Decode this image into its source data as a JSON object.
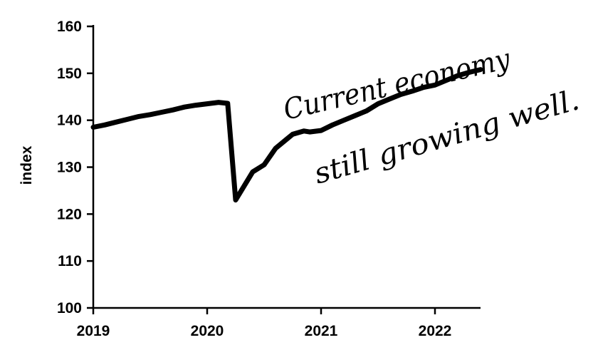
{
  "chart_data": {
    "type": "line",
    "ylabel": "index",
    "xlabel": "",
    "xlim": [
      2019,
      2022.4
    ],
    "ylim": [
      100,
      160
    ],
    "x_ticks": [
      {
        "value": 2019,
        "label": "2019"
      },
      {
        "value": 2020,
        "label": "2020"
      },
      {
        "value": 2021,
        "label": "2021"
      },
      {
        "value": 2022,
        "label": "2022"
      }
    ],
    "y_ticks": [
      {
        "value": 100,
        "label": "100"
      },
      {
        "value": 110,
        "label": "110"
      },
      {
        "value": 120,
        "label": "120"
      },
      {
        "value": 130,
        "label": "130"
      },
      {
        "value": 140,
        "label": "140"
      },
      {
        "value": 150,
        "label": "150"
      },
      {
        "value": 160,
        "label": "160"
      }
    ],
    "grid": false,
    "series": [
      {
        "color": "#000000",
        "x": [
          2019.0,
          2019.1,
          2019.2,
          2019.3,
          2019.4,
          2019.5,
          2019.6,
          2019.7,
          2019.8,
          2019.9,
          2020.0,
          2020.1,
          2020.18,
          2020.25,
          2020.3,
          2020.4,
          2020.5,
          2020.6,
          2020.7,
          2020.75,
          2020.85,
          2020.9,
          2021.0,
          2021.1,
          2021.2,
          2021.3,
          2021.4,
          2021.5,
          2021.6,
          2021.7,
          2021.8,
          2021.9,
          2022.0,
          2022.1,
          2022.2,
          2022.3,
          2022.4
        ],
        "y": [
          138.5,
          139.0,
          139.6,
          140.2,
          140.8,
          141.2,
          141.7,
          142.2,
          142.8,
          143.2,
          143.5,
          143.8,
          143.6,
          123.0,
          125.0,
          129.0,
          130.5,
          134.0,
          136.0,
          137.0,
          137.7,
          137.5,
          137.8,
          139.0,
          140.0,
          141.0,
          142.0,
          143.5,
          144.5,
          145.5,
          146.2,
          147.0,
          147.5,
          148.5,
          149.5,
          150.2,
          150.8
        ]
      }
    ],
    "annotations": [
      {
        "text": "Current economy"
      },
      {
        "text": "still growing well."
      }
    ]
  }
}
